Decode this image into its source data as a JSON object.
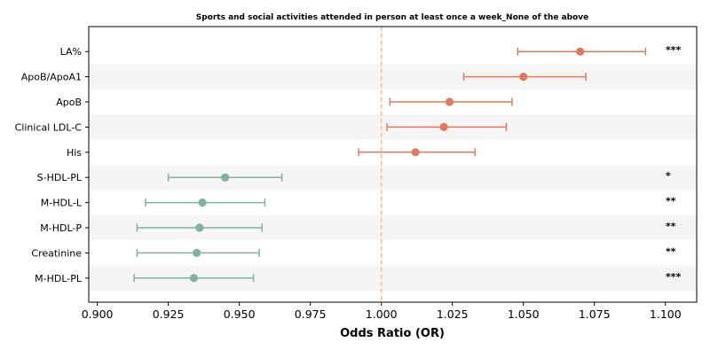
{
  "chart_data": {
    "type": "forest",
    "title": "Sports and social activities attended in person at least once a week_None of the above",
    "xlabel": "Odds Ratio (OR)",
    "xlim": [
      0.897,
      1.111
    ],
    "xticks": [
      "0.900",
      "0.925",
      "0.950",
      "0.975",
      "1.000",
      "1.025",
      "1.050",
      "1.075",
      "1.100"
    ],
    "reference_line": 1.0,
    "colors": {
      "positive": "#e07a5f",
      "negative": "#81b29a",
      "reference": "#f2c088",
      "band": "#f5f5f5"
    },
    "rows": [
      {
        "label": "LA%",
        "or": 1.07,
        "lo": 1.048,
        "hi": 1.093,
        "sig": "***"
      },
      {
        "label": "ApoB/ApoA1",
        "or": 1.05,
        "lo": 1.029,
        "hi": 1.072,
        "sig": ""
      },
      {
        "label": "ApoB",
        "or": 1.024,
        "lo": 1.003,
        "hi": 1.046,
        "sig": ""
      },
      {
        "label": "Clinical LDL-C",
        "or": 1.022,
        "lo": 1.002,
        "hi": 1.044,
        "sig": ""
      },
      {
        "label": "His",
        "or": 1.012,
        "lo": 0.992,
        "hi": 1.033,
        "sig": ""
      },
      {
        "label": "S-HDL-PL",
        "or": 0.945,
        "lo": 0.925,
        "hi": 0.965,
        "sig": "*"
      },
      {
        "label": "M-HDL-L",
        "or": 0.937,
        "lo": 0.917,
        "hi": 0.959,
        "sig": "**"
      },
      {
        "label": "M-HDL-P",
        "or": 0.936,
        "lo": 0.914,
        "hi": 0.958,
        "sig": "**"
      },
      {
        "label": "Creatinine",
        "or": 0.935,
        "lo": 0.914,
        "hi": 0.957,
        "sig": "**"
      },
      {
        "label": "M-HDL-PL",
        "or": 0.934,
        "lo": 0.913,
        "hi": 0.955,
        "sig": "***"
      }
    ]
  }
}
